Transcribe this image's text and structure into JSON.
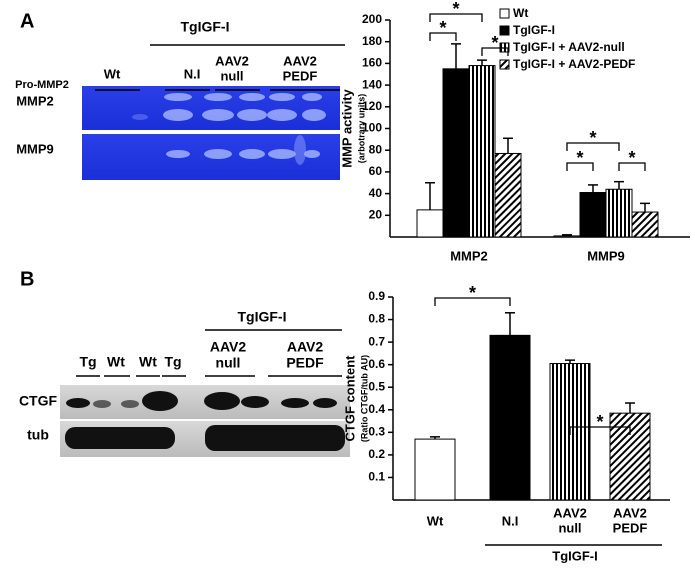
{
  "panels": {
    "a": "A",
    "b": "B"
  },
  "blot_a": {
    "group": "TgIGF-I",
    "lanes": [
      "Wt",
      "N.I",
      [
        "AAV2",
        "null"
      ],
      [
        "AAV2",
        "PEDF"
      ]
    ],
    "rows": [
      "Pro-MMP2",
      "MMP2",
      "MMP9"
    ]
  },
  "blot_b": {
    "group": "TgIGF-I",
    "lanes": [
      "Tg",
      "Wt",
      "Wt",
      "Tg",
      [
        "AAV2",
        "null"
      ],
      [
        "AAV2",
        "PEDF"
      ]
    ],
    "rows": [
      "CTGF",
      "tub"
    ]
  },
  "chart_data": [
    {
      "type": "bar",
      "y_label": "MMP activity",
      "y_sublabel": "(arbotrary units)",
      "categories": [
        "MMP2",
        "MMP9"
      ],
      "series": [
        {
          "name": "Wt",
          "color": "#ffffff",
          "pattern": "none",
          "values": [
            25,
            1
          ],
          "errors": [
            25,
            1
          ]
        },
        {
          "name": "TgIGF-I",
          "color": "#000000",
          "pattern": "none",
          "values": [
            155,
            41
          ],
          "errors": [
            23,
            7
          ]
        },
        {
          "name": "TgIGF-I + AAV2-null",
          "color": "#000000",
          "pattern": "vertical",
          "values": [
            158,
            44
          ],
          "errors": [
            5,
            7
          ]
        },
        {
          "name": "TgIGF-I + AAV2-PEDF",
          "color": "#000000",
          "pattern": "diagonal",
          "values": [
            77,
            23
          ],
          "errors": [
            14,
            8
          ]
        }
      ],
      "ylim": [
        0,
        200
      ],
      "yticks": [
        20,
        40,
        60,
        80,
        100,
        120,
        140,
        160,
        180,
        200
      ],
      "annotations": [
        "*",
        "*",
        "*",
        "*",
        "*",
        "*"
      ]
    },
    {
      "type": "bar",
      "y_label": "CTGF content",
      "y_sublabel": "(Ratio CTGF/tub AU)",
      "categories": [
        "Wt",
        "N.I",
        [
          "AAV2",
          "null"
        ],
        [
          "AAV2",
          "PEDF"
        ]
      ],
      "group_label": "TgIGF-I",
      "series": [
        {
          "colors": [
            "#ffffff",
            "#000000",
            "#000000",
            "#000000"
          ],
          "patterns": [
            "none",
            "none",
            "vertical",
            "diagonal"
          ],
          "values": [
            0.27,
            0.73,
            0.605,
            0.385
          ],
          "errors": [
            0.01,
            0.1,
            0.015,
            0.045
          ]
        }
      ],
      "ylim": [
        0,
        0.9
      ],
      "yticks": [
        0.1,
        0.2,
        0.3,
        0.4,
        0.5,
        0.6,
        0.7,
        0.8,
        0.9
      ],
      "annotations": [
        "*",
        "*"
      ]
    }
  ]
}
